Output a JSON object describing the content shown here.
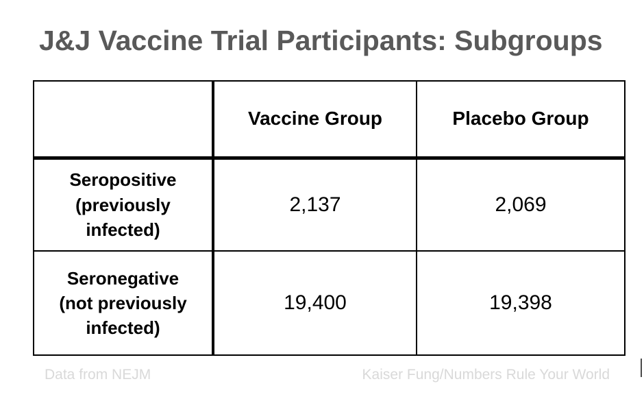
{
  "page": {
    "title": "J&J Vaccine Trial Participants: Subgroups"
  },
  "table": {
    "columns": [
      "",
      "Vaccine Group",
      "Placebo Group"
    ],
    "rows": [
      {
        "label": "Seropositive\n(previously\ninfected)",
        "vaccine": "2,137",
        "placebo": "2,069"
      },
      {
        "label": "Seronegative\n(not previously\ninfected)",
        "vaccine": "19,400",
        "placebo": "19,398"
      }
    ]
  },
  "footer": {
    "left": "Data from NEJM",
    "right": "Kaiser Fung/Numbers Rule Your World"
  },
  "colors": {
    "title_text": "#595959",
    "table_border": "#000000",
    "cell_text": "#000000",
    "footer_text": "#d9d9d9",
    "background": "#ffffff"
  },
  "chart_data": {
    "type": "table",
    "title": "J&J Vaccine Trial Participants: Subgroups",
    "columns": [
      "",
      "Vaccine Group",
      "Placebo Group"
    ],
    "categories": [
      "Seropositive (previously infected)",
      "Seronegative (not previously infected)"
    ],
    "series": [
      {
        "name": "Vaccine Group",
        "values": [
          2137,
          19400
        ]
      },
      {
        "name": "Placebo Group",
        "values": [
          2069,
          19398
        ]
      }
    ],
    "source": "Data from NEJM",
    "credit": "Kaiser Fung/Numbers Rule Your World"
  }
}
